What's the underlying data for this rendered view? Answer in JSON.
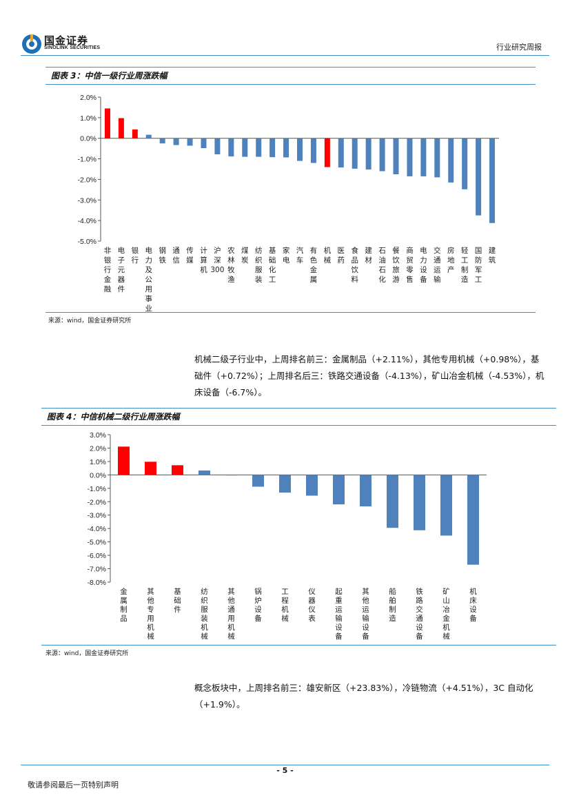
{
  "header": {
    "logo_cn": "国金证券",
    "logo_en": "SINOLINK SECURITIES",
    "report_type": "行业研究周报"
  },
  "colors": {
    "accent": "#3d8fc6",
    "bar_blue": "#4f81bd",
    "bar_red": "#ff0000"
  },
  "chart1": {
    "title": "图表 3：中信一级行业周涨跌幅",
    "source": "来源：wind，国金证券研究所"
  },
  "chart2": {
    "title": "图表 4：中信机械二级行业周涨跌幅",
    "source": "来源：wind，国金证券研究所"
  },
  "paragraphs": {
    "p1": "机械二级子行业中，上周排名前三：金属制品（+2.11%），其他专用机械（+0.98%），基础件（+0.72%）；上周排名后三：铁路交通设备（-4.13%），矿山冶金机械（-4.53%），机床设备（-6.7%）。",
    "p2": "概念板块中，上周排名前三：雄安新区（+23.83%），冷链物流（+4.51%），3C 自动化（+1.9%）。"
  },
  "footer": {
    "page": "- 5 -",
    "note": "敬请参阅最后一页特别声明"
  },
  "chart_data": [
    {
      "type": "bar",
      "title": "图表 3：中信一级行业周涨跌幅",
      "ylim": [
        -5.0,
        2.0
      ],
      "yticks": [
        "2.0%",
        "1.0%",
        "0.0%",
        "-1.0%",
        "-2.0%",
        "-3.0%",
        "-4.0%",
        "-5.0%"
      ],
      "categories": [
        "非银行金融",
        "电子元器件",
        "银行",
        "电力及公用事业",
        "钢铁",
        "通信",
        "传媒",
        "计算机",
        "沪深300",
        "农林牧渔",
        "煤炭",
        "纺织服装",
        "基础化工",
        "家电",
        "汽车",
        "有色金属",
        "机械",
        "医药",
        "食品饮料",
        "建材",
        "石油石化",
        "餐饮旅游",
        "商贸零售",
        "电力设备",
        "交通运输",
        "房地产",
        "轻工制造",
        "国防军工",
        "建筑"
      ],
      "values": [
        1.45,
        0.98,
        0.43,
        0.17,
        -0.25,
        -0.33,
        -0.36,
        -0.48,
        -0.78,
        -0.88,
        -0.9,
        -0.9,
        -0.92,
        -0.93,
        -1.1,
        -1.2,
        -1.4,
        -1.42,
        -1.48,
        -1.52,
        -1.6,
        -1.75,
        -1.85,
        -1.85,
        -1.9,
        -2.15,
        -2.48,
        -3.75,
        -4.12
      ],
      "highlight": [
        "非银行金融",
        "电子元器件",
        "银行",
        "机械"
      ]
    },
    {
      "type": "bar",
      "title": "图表 4：中信机械二级行业周涨跌幅",
      "ylim": [
        -8.0,
        3.0
      ],
      "yticks": [
        "3.0%",
        "2.0%",
        "1.0%",
        "0.0%",
        "-1.0%",
        "-2.0%",
        "-3.0%",
        "-4.0%",
        "-5.0%",
        "-6.0%",
        "-7.0%",
        "-8.0%"
      ],
      "categories": [
        "金属制品",
        "其他专用机械",
        "基础件",
        "纺织服装机械",
        "其他通用机械",
        "锅炉设备",
        "工程机械",
        "仪器仪表",
        "起重运输设备",
        "其他运输设备",
        "船舶制造",
        "铁路交通设备",
        "矿山冶金机械",
        "机床设备"
      ],
      "values": [
        2.11,
        0.98,
        0.72,
        0.33,
        -0.02,
        -0.88,
        -1.32,
        -1.55,
        -2.2,
        -2.35,
        -3.95,
        -4.13,
        -4.53,
        -6.7
      ],
      "highlight": [
        "金属制品",
        "其他专用机械",
        "基础件"
      ]
    }
  ]
}
